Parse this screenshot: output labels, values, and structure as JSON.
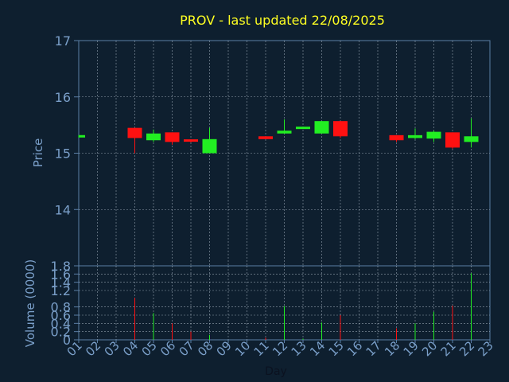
{
  "chart_data": [
    {
      "type": "candlestick",
      "title": "PROV - last updated 22/08/2025",
      "ylabel": "Price",
      "ylim": [
        13.0,
        17.0
      ],
      "yticks": [
        14,
        15,
        16,
        17
      ],
      "grid": true,
      "up_color": "#22ee22",
      "down_color": "#ff1111",
      "title_color": "#ffff22",
      "label_color": "#7a9fc9",
      "background": "#0e1f2f",
      "candles": [
        {
          "day": 1,
          "open": 15.28,
          "high": 15.32,
          "low": 15.28,
          "close": 15.32
        },
        {
          "day": 4,
          "open": 15.45,
          "high": 15.45,
          "low": 15.0,
          "close": 15.27
        },
        {
          "day": 5,
          "open": 15.23,
          "high": 15.42,
          "low": 15.2,
          "close": 15.35
        },
        {
          "day": 6,
          "open": 15.37,
          "high": 15.37,
          "low": 15.15,
          "close": 15.2
        },
        {
          "day": 7,
          "open": 15.24,
          "high": 15.24,
          "low": 15.19,
          "close": 15.21
        },
        {
          "day": 8,
          "open": 15.0,
          "high": 15.45,
          "low": 15.0,
          "close": 15.25
        },
        {
          "day": 11,
          "open": 15.3,
          "high": 15.3,
          "low": 15.25,
          "close": 15.25
        },
        {
          "day": 12,
          "open": 15.35,
          "high": 15.6,
          "low": 15.35,
          "close": 15.4
        },
        {
          "day": 13,
          "open": 15.44,
          "high": 15.46,
          "low": 15.44,
          "close": 15.46
        },
        {
          "day": 14,
          "open": 15.35,
          "high": 15.57,
          "low": 15.35,
          "close": 15.57
        },
        {
          "day": 15,
          "open": 15.57,
          "high": 15.57,
          "low": 15.27,
          "close": 15.3
        },
        {
          "day": 18,
          "open": 15.32,
          "high": 15.32,
          "low": 15.2,
          "close": 15.23
        },
        {
          "day": 19,
          "open": 15.27,
          "high": 15.44,
          "low": 15.25,
          "close": 15.32
        },
        {
          "day": 20,
          "open": 15.26,
          "high": 15.4,
          "low": 15.2,
          "close": 15.38
        },
        {
          "day": 21,
          "open": 15.37,
          "high": 15.37,
          "low": 15.08,
          "close": 15.1
        },
        {
          "day": 22,
          "open": 15.2,
          "high": 15.62,
          "low": 15.1,
          "close": 15.3
        }
      ]
    },
    {
      "type": "bar",
      "ylabel": "Volume (0000)",
      "xlabel": "Day",
      "ylim": [
        0,
        1.8
      ],
      "yticks": [
        0,
        0.2,
        0.4,
        0.6,
        0.8,
        1.2,
        1.4,
        1.6,
        1.8
      ],
      "yticklabels": [
        "0",
        "0.2",
        "0.4",
        "0.6",
        "0.8",
        "1.2",
        "1.4",
        "1.6",
        "1.8"
      ],
      "categories": [
        "01",
        "02",
        "03",
        "04",
        "05",
        "06",
        "07",
        "08",
        "09",
        "10",
        "11",
        "12",
        "13",
        "14",
        "15",
        "16",
        "17",
        "18",
        "19",
        "20",
        "21",
        "22",
        "23"
      ],
      "grid": true,
      "bars": [
        {
          "day": 4,
          "value": 1.02,
          "color": "#ff1111"
        },
        {
          "day": 5,
          "value": 0.65,
          "color": "#22ee22"
        },
        {
          "day": 6,
          "value": 0.4,
          "color": "#ff1111"
        },
        {
          "day": 7,
          "value": 0.2,
          "color": "#ff1111"
        },
        {
          "day": 8,
          "value": 0.12,
          "color": "#22ee22"
        },
        {
          "day": 11,
          "value": 0.05,
          "color": "#ff1111"
        },
        {
          "day": 12,
          "value": 0.82,
          "color": "#22ee22"
        },
        {
          "day": 13,
          "value": 0.03,
          "color": "#22ee22"
        },
        {
          "day": 14,
          "value": 0.42,
          "color": "#22ee22"
        },
        {
          "day": 15,
          "value": 0.6,
          "color": "#ff1111"
        },
        {
          "day": 18,
          "value": 0.28,
          "color": "#ff1111"
        },
        {
          "day": 19,
          "value": 0.4,
          "color": "#22ee22"
        },
        {
          "day": 20,
          "value": 0.68,
          "color": "#22ee22"
        },
        {
          "day": 21,
          "value": 0.83,
          "color": "#ff1111"
        },
        {
          "day": 22,
          "value": 1.62,
          "color": "#22ee22"
        }
      ]
    }
  ]
}
